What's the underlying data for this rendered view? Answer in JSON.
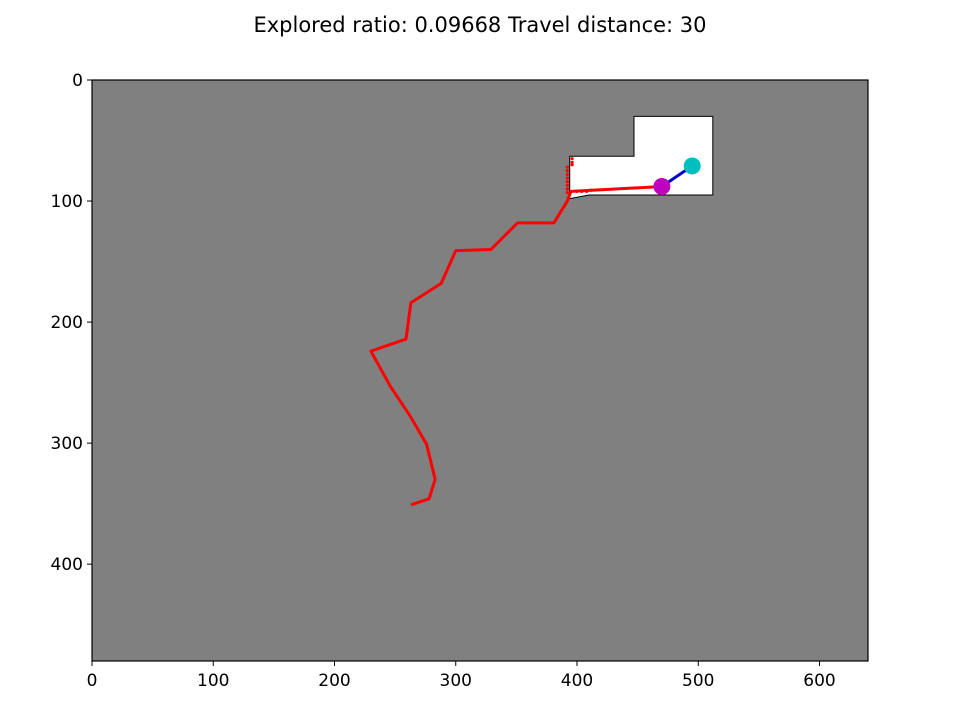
{
  "chart_data": {
    "type": "line",
    "title": "Explored ratio: 0.09668  Travel distance: 30",
    "xlim": [
      0,
      640
    ],
    "ylim": [
      480,
      0
    ],
    "y_inverted": true,
    "xticks": [
      "0",
      "100",
      "200",
      "300",
      "400",
      "500",
      "600"
    ],
    "yticks": [
      "0",
      "100",
      "200",
      "300",
      "400"
    ],
    "grid": false,
    "background_color": "#808080",
    "explored_color": "#ffffff",
    "explored_region": [
      [
        394,
        63
      ],
      [
        447,
        63
      ],
      [
        447,
        30
      ],
      [
        512,
        30
      ],
      [
        512,
        95
      ],
      [
        410,
        95
      ],
      [
        394,
        98
      ]
    ],
    "series": [
      {
        "color": "#ff0000",
        "x": [
          263,
          278,
          283,
          276,
          262,
          246,
          230,
          259,
          263,
          288,
          300,
          329,
          351,
          381,
          392,
          395,
          470
        ],
        "y": [
          351,
          346,
          330,
          301,
          277,
          253,
          224,
          214,
          184,
          168,
          141,
          140,
          118,
          118,
          100,
          92,
          88
        ]
      },
      {
        "color": "#0000cc",
        "x": [
          470,
          495
        ],
        "y": [
          88,
          71
        ]
      }
    ],
    "frontier_color": "#ff0000",
    "frontier_points": [
      [
        392,
        72
      ],
      [
        392,
        75
      ],
      [
        392,
        78
      ],
      [
        392,
        81
      ],
      [
        392,
        84
      ],
      [
        392,
        87
      ],
      [
        392,
        90
      ],
      [
        392,
        93
      ],
      [
        396,
        65
      ],
      [
        396,
        68
      ],
      [
        396,
        70
      ],
      [
        400,
        92
      ],
      [
        404,
        92
      ],
      [
        408,
        92
      ],
      [
        412,
        91
      ]
    ],
    "markers": [
      {
        "x": 470,
        "y": 88,
        "color": "#bf00bf"
      },
      {
        "x": 495,
        "y": 71,
        "color": "#00bfbf"
      }
    ]
  }
}
